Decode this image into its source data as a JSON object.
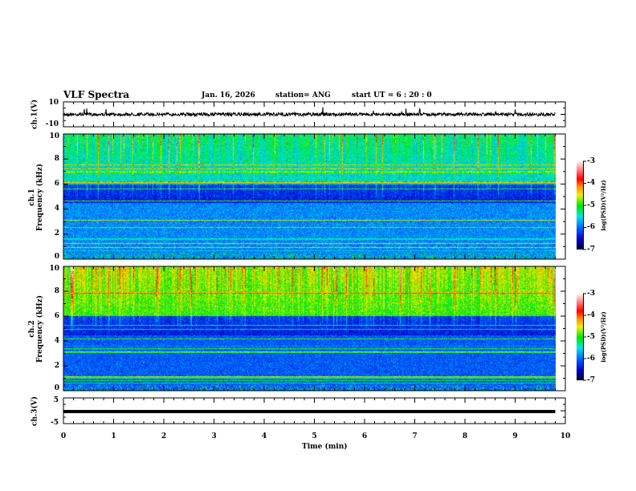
{
  "header": {
    "title": "VLF Spectra",
    "date": "Jan. 16, 2026",
    "station": "station= ANG",
    "start": "start  UT =   6 : 20 : 0"
  },
  "panels": [
    {
      "id": "ch1v",
      "ylabel": "ch.1(V)",
      "yticks": [
        "10",
        "-10"
      ]
    },
    {
      "id": "ch1",
      "ylabel": "ch.1\nFrequency (kHz)",
      "ylabel1": "ch.1",
      "ylabel2": "Frequency (kHz)",
      "yticks": [
        "0",
        "2",
        "4",
        "6",
        "8",
        "10"
      ],
      "colorbar": {
        "label": "log(PSD)(V²/Hz)",
        "ticks": [
          "-3",
          "-4",
          "-5",
          "-6",
          "-7"
        ]
      }
    },
    {
      "id": "ch2",
      "ylabel1": "ch.2",
      "ylabel2": "Frequency (kHz)",
      "yticks": [
        "0",
        "2",
        "4",
        "6",
        "8",
        "10"
      ],
      "colorbar": {
        "label": "log(PSD)(V²/Hz)",
        "ticks": [
          "-3",
          "-4",
          "-5",
          "-6",
          "-7"
        ]
      }
    },
    {
      "id": "ch3v",
      "ylabel": "ch.3(V)",
      "yticks": [
        "5",
        "-5"
      ]
    }
  ],
  "chart_data": {
    "type": "heatmap",
    "title": "VLF Spectra",
    "xlabel": "Time (min)",
    "xlim": [
      0,
      10
    ],
    "xticks": [
      "0",
      "1",
      "2",
      "3",
      "4",
      "5",
      "6",
      "7",
      "8",
      "9",
      "10"
    ],
    "data_end_min": 9.8,
    "spectrogram_ylim_khz": [
      0,
      10
    ],
    "color_range_log_psd": [
      -7,
      -3
    ],
    "ch1_waveform_ylim": [
      -10,
      10
    ],
    "ch3_waveform_ylim": [
      -5,
      5
    ],
    "ch3_level_v": -0.3
  }
}
